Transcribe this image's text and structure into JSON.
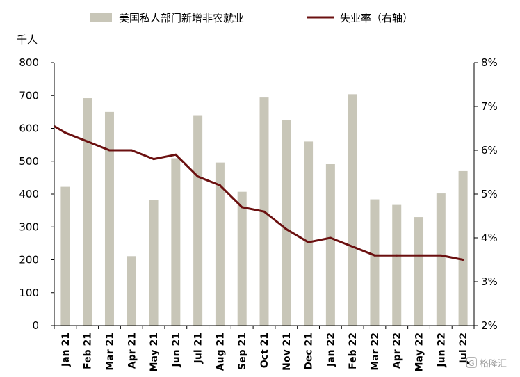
{
  "chart_data": {
    "type": "bar+line",
    "categories": [
      "Jan 21",
      "Feb 21",
      "Mar 21",
      "Apr 21",
      "May 21",
      "Jun 21",
      "Jul 21",
      "Aug 21",
      "Sep 21",
      "Oct 21",
      "Nov 21",
      "Dec 21",
      "Jan 22",
      "Feb 22",
      "Mar 22",
      "Apr 22",
      "May 22",
      "Jun 22",
      "Jul 22"
    ],
    "series": [
      {
        "name": "美国私人部门新增非农就业",
        "type": "bar",
        "axis": "left",
        "color": "#c8c6b8",
        "values": [
          422,
          692,
          650,
          211,
          381,
          509,
          638,
          496,
          407,
          694,
          626,
          560,
          491,
          704,
          384,
          367,
          330,
          402,
          470
        ]
      },
      {
        "name": "失业率（右轴）",
        "type": "line",
        "axis": "right",
        "color": "#6b1010",
        "values": [
          6.4,
          6.2,
          6.0,
          6.0,
          5.8,
          5.9,
          5.4,
          5.2,
          4.7,
          4.6,
          4.2,
          3.9,
          4.0,
          3.8,
          3.6,
          3.6,
          3.6,
          3.6,
          3.5
        ]
      }
    ],
    "y_left": {
      "label": "千人",
      "min": 0,
      "max": 800,
      "ticks": [
        "0",
        "100",
        "200",
        "300",
        "400",
        "500",
        "600",
        "700",
        "800"
      ]
    },
    "y_right": {
      "min": 2,
      "max": 8,
      "ticks": [
        "2%",
        "3%",
        "4%",
        "5%",
        "6%",
        "7%",
        "8%"
      ]
    },
    "legend_position": "top",
    "grid": false
  },
  "watermark": "格隆汇"
}
